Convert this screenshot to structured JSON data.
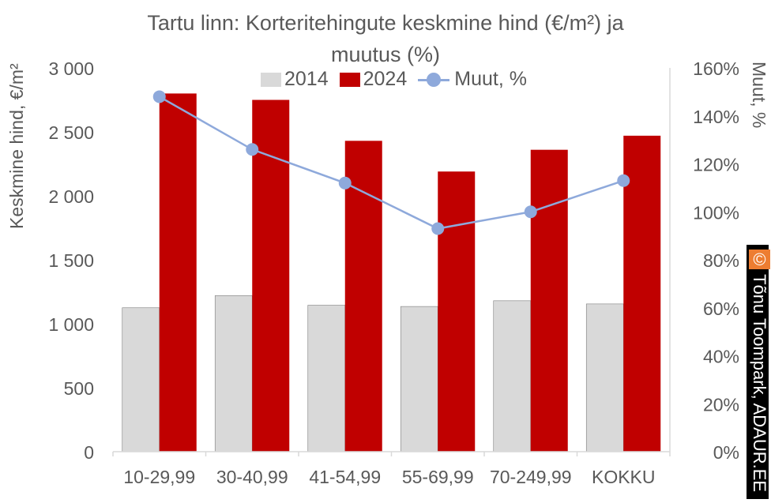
{
  "chart_data": {
    "type": "bar",
    "title_line1": "Tartu linn: Korteritehingute keskmine hind (€/m²) ja",
    "title_line2": "muutus (%)",
    "ylabel": "Keskmine hind, €/m²",
    "y2label": "Muut, %",
    "categories": [
      "10-29,99",
      "30-40,99",
      "41-54,99",
      "55-69,99",
      "70-249,99",
      "KOKKU"
    ],
    "series": [
      {
        "name": "2014",
        "type": "bar",
        "color": "#D9D9D9",
        "values": [
          1125,
          1220,
          1145,
          1135,
          1180,
          1155
        ]
      },
      {
        "name": "2024",
        "type": "bar",
        "color": "#C00000",
        "values": [
          2800,
          2750,
          2430,
          2190,
          2360,
          2470
        ]
      },
      {
        "name": "Muut, %",
        "type": "line",
        "axis": "right",
        "color": "#8EA9DB",
        "values": [
          148,
          126,
          112,
          93,
          100,
          113
        ]
      }
    ],
    "ylim": [
      0,
      3000
    ],
    "y2lim": [
      0,
      160
    ],
    "yticks": [
      0,
      500,
      1000,
      1500,
      2000,
      2500,
      3000
    ],
    "yticklabels": [
      "0",
      "500",
      "1 000",
      "1 500",
      "2 000",
      "2 500",
      "3 000"
    ],
    "y2ticks": [
      0,
      20,
      40,
      60,
      80,
      100,
      120,
      140,
      160
    ],
    "y2ticklabels": [
      "0%",
      "20%",
      "40%",
      "60%",
      "80%",
      "100%",
      "120%",
      "140%",
      "160%"
    ],
    "legend_position": "top",
    "grid": false
  },
  "copyright": {
    "symbol": "©",
    "text": "Tõnu Toompark, ADAUR.EE"
  }
}
